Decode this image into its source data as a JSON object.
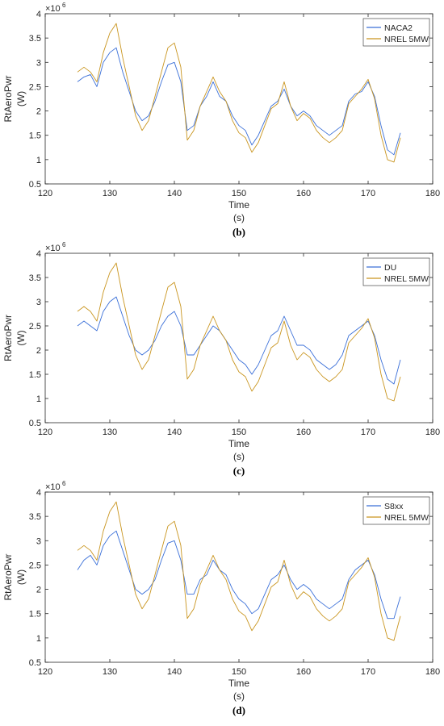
{
  "chart_data": [
    {
      "type": "line",
      "panel_label": "(b)",
      "xlabel": "Time",
      "xunit": "(s)",
      "ylabel": "RtAeroPwr",
      "yunit": "(W)",
      "exponent_label": "×10",
      "exponent_power": "6",
      "xlim": [
        120,
        180
      ],
      "ylim": [
        0.5,
        4
      ],
      "xticks": [
        120,
        130,
        140,
        150,
        160,
        170,
        180
      ],
      "yticks": [
        0.5,
        1,
        1.5,
        2,
        2.5,
        3,
        3.5,
        4
      ],
      "xtick_labels": [
        "120",
        "130",
        "140",
        "150",
        "160",
        "170",
        "180"
      ],
      "ytick_labels": [
        "0.5",
        "1",
        "1.5",
        "2",
        "2.5",
        "3",
        "3.5",
        "4"
      ],
      "legend_position": "top-right",
      "grid": false,
      "x": [
        125,
        126,
        127,
        128,
        129,
        130,
        131,
        132,
        133,
        134,
        135,
        136,
        137,
        138,
        139,
        140,
        141,
        142,
        143,
        144,
        145,
        146,
        147,
        148,
        149,
        150,
        151,
        152,
        153,
        154,
        155,
        156,
        157,
        158,
        159,
        160,
        161,
        162,
        163,
        164,
        165,
        166,
        167,
        168,
        169,
        170,
        171,
        172,
        173,
        174,
        175
      ],
      "series": [
        {
          "name": "NACA2",
          "color": "#3a6fd8",
          "values": [
            2.6,
            2.7,
            2.75,
            2.5,
            3.0,
            3.2,
            3.3,
            2.8,
            2.4,
            2.0,
            1.8,
            1.9,
            2.2,
            2.6,
            2.95,
            3.0,
            2.6,
            1.6,
            1.7,
            2.1,
            2.3,
            2.6,
            2.3,
            2.2,
            1.9,
            1.7,
            1.6,
            1.3,
            1.5,
            1.8,
            2.1,
            2.2,
            2.45,
            2.1,
            1.9,
            2.0,
            1.9,
            1.7,
            1.6,
            1.5,
            1.6,
            1.7,
            2.2,
            2.35,
            2.4,
            2.6,
            2.3,
            1.7,
            1.2,
            1.1,
            1.55
          ]
        },
        {
          "name": "NREL 5MW",
          "color": "#c9951f",
          "values": [
            2.8,
            2.9,
            2.8,
            2.6,
            3.2,
            3.6,
            3.8,
            3.1,
            2.5,
            1.9,
            1.6,
            1.8,
            2.3,
            2.8,
            3.3,
            3.4,
            2.9,
            1.4,
            1.6,
            2.1,
            2.4,
            2.7,
            2.4,
            2.2,
            1.8,
            1.55,
            1.45,
            1.15,
            1.35,
            1.7,
            2.05,
            2.15,
            2.6,
            2.1,
            1.8,
            1.95,
            1.85,
            1.6,
            1.45,
            1.35,
            1.45,
            1.6,
            2.15,
            2.3,
            2.45,
            2.65,
            2.25,
            1.5,
            1.0,
            0.95,
            1.45
          ]
        }
      ]
    },
    {
      "type": "line",
      "panel_label": "(c)",
      "xlabel": "Time",
      "xunit": "(s)",
      "ylabel": "RtAeroPwr",
      "yunit": "(W)",
      "exponent_label": "×10",
      "exponent_power": "6",
      "xlim": [
        120,
        180
      ],
      "ylim": [
        0.5,
        4
      ],
      "xticks": [
        120,
        130,
        140,
        150,
        160,
        170,
        180
      ],
      "yticks": [
        0.5,
        1,
        1.5,
        2,
        2.5,
        3,
        3.5,
        4
      ],
      "xtick_labels": [
        "120",
        "130",
        "140",
        "150",
        "160",
        "170",
        "180"
      ],
      "ytick_labels": [
        "0.5",
        "1",
        "1.5",
        "2",
        "2.5",
        "3",
        "3.5",
        "4"
      ],
      "legend_position": "top-right",
      "grid": false,
      "x": [
        125,
        126,
        127,
        128,
        129,
        130,
        131,
        132,
        133,
        134,
        135,
        136,
        137,
        138,
        139,
        140,
        141,
        142,
        143,
        144,
        145,
        146,
        147,
        148,
        149,
        150,
        151,
        152,
        153,
        154,
        155,
        156,
        157,
        158,
        159,
        160,
        161,
        162,
        163,
        164,
        165,
        166,
        167,
        168,
        169,
        170,
        171,
        172,
        173,
        174,
        175
      ],
      "series": [
        {
          "name": "DU",
          "color": "#3a6fd8",
          "values": [
            2.5,
            2.6,
            2.5,
            2.4,
            2.8,
            3.0,
            3.1,
            2.7,
            2.3,
            2.0,
            1.9,
            2.0,
            2.2,
            2.5,
            2.7,
            2.8,
            2.5,
            1.9,
            1.9,
            2.1,
            2.3,
            2.5,
            2.4,
            2.2,
            2.0,
            1.8,
            1.7,
            1.5,
            1.7,
            2.0,
            2.3,
            2.4,
            2.7,
            2.4,
            2.1,
            2.1,
            2.0,
            1.8,
            1.7,
            1.6,
            1.7,
            1.9,
            2.3,
            2.4,
            2.5,
            2.6,
            2.3,
            1.8,
            1.4,
            1.3,
            1.8
          ]
        },
        {
          "name": "NREL 5MW",
          "color": "#c9951f",
          "values": [
            2.8,
            2.9,
            2.8,
            2.6,
            3.2,
            3.6,
            3.8,
            3.1,
            2.5,
            1.9,
            1.6,
            1.8,
            2.3,
            2.8,
            3.3,
            3.4,
            2.9,
            1.4,
            1.6,
            2.1,
            2.4,
            2.7,
            2.4,
            2.2,
            1.8,
            1.55,
            1.45,
            1.15,
            1.35,
            1.7,
            2.05,
            2.15,
            2.6,
            2.1,
            1.8,
            1.95,
            1.85,
            1.6,
            1.45,
            1.35,
            1.45,
            1.6,
            2.15,
            2.3,
            2.45,
            2.65,
            2.25,
            1.5,
            1.0,
            0.95,
            1.45
          ]
        }
      ]
    },
    {
      "type": "line",
      "panel_label": "(d)",
      "xlabel": "Time",
      "xunit": "(s)",
      "ylabel": "RtAeroPwr",
      "yunit": "(W)",
      "exponent_label": "×10",
      "exponent_power": "6",
      "xlim": [
        120,
        180
      ],
      "ylim": [
        0.5,
        4
      ],
      "xticks": [
        120,
        130,
        140,
        150,
        160,
        170,
        180
      ],
      "yticks": [
        0.5,
        1,
        1.5,
        2,
        2.5,
        3,
        3.5,
        4
      ],
      "xtick_labels": [
        "120",
        "130",
        "140",
        "150",
        "160",
        "170",
        "180"
      ],
      "ytick_labels": [
        "0.5",
        "1",
        "1.5",
        "2",
        "2.5",
        "3",
        "3.5",
        "4"
      ],
      "legend_position": "top-right",
      "grid": false,
      "x": [
        125,
        126,
        127,
        128,
        129,
        130,
        131,
        132,
        133,
        134,
        135,
        136,
        137,
        138,
        139,
        140,
        141,
        142,
        143,
        144,
        145,
        146,
        147,
        148,
        149,
        150,
        151,
        152,
        153,
        154,
        155,
        156,
        157,
        158,
        159,
        160,
        161,
        162,
        163,
        164,
        165,
        166,
        167,
        168,
        169,
        170,
        171,
        172,
        173,
        174,
        175
      ],
      "series": [
        {
          "name": "S8xx",
          "color": "#3a6fd8",
          "values": [
            2.4,
            2.6,
            2.7,
            2.5,
            2.9,
            3.1,
            3.2,
            2.8,
            2.4,
            2.0,
            1.9,
            2.0,
            2.2,
            2.6,
            2.95,
            3.0,
            2.6,
            1.9,
            1.9,
            2.2,
            2.3,
            2.6,
            2.4,
            2.3,
            2.0,
            1.8,
            1.7,
            1.5,
            1.6,
            1.9,
            2.2,
            2.3,
            2.5,
            2.2,
            2.0,
            2.1,
            2.0,
            1.8,
            1.7,
            1.6,
            1.7,
            1.8,
            2.2,
            2.4,
            2.5,
            2.6,
            2.3,
            1.8,
            1.4,
            1.4,
            1.85
          ]
        },
        {
          "name": "NREL 5MW",
          "color": "#c9951f",
          "values": [
            2.8,
            2.9,
            2.8,
            2.6,
            3.2,
            3.6,
            3.8,
            3.1,
            2.5,
            1.9,
            1.6,
            1.8,
            2.3,
            2.8,
            3.3,
            3.4,
            2.9,
            1.4,
            1.6,
            2.1,
            2.4,
            2.7,
            2.4,
            2.2,
            1.8,
            1.55,
            1.45,
            1.15,
            1.35,
            1.7,
            2.05,
            2.15,
            2.6,
            2.1,
            1.8,
            1.95,
            1.85,
            1.6,
            1.45,
            1.35,
            1.45,
            1.6,
            2.15,
            2.3,
            2.45,
            2.65,
            2.25,
            1.5,
            1.0,
            0.95,
            1.45
          ]
        }
      ]
    }
  ]
}
